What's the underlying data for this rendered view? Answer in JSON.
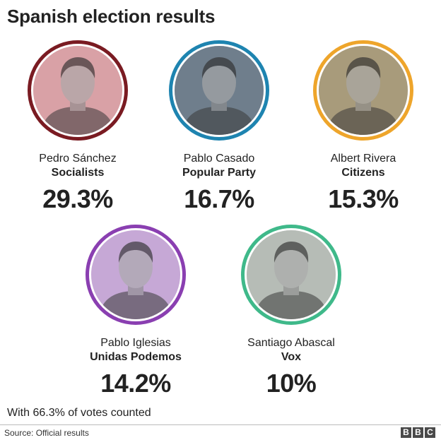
{
  "header": {
    "title": "Spanish election results"
  },
  "candidates": [
    {
      "name": "Pedro Sánchez",
      "party": "Socialists",
      "percent_label": "29.3%",
      "ring_color": "#7a1b22",
      "tint": "#d9a1a6"
    },
    {
      "name": "Pablo Casado",
      "party": "Popular Party",
      "percent_label": "16.7%",
      "ring_color": "#1e84b0",
      "tint": "#6f7f8c"
    },
    {
      "name": "Albert Rivera",
      "party": "Citizens",
      "percent_label": "15.3%",
      "ring_color": "#eea52b",
      "tint": "#a89b7c"
    },
    {
      "name": "Pablo Iglesias",
      "party": "Unidas Podemos",
      "percent_label": "14.2%",
      "ring_color": "#8a3fb1",
      "tint": "#c6a8d6"
    },
    {
      "name": "Santiago Abascal",
      "party": "Vox",
      "percent_label": "10%",
      "ring_color": "#3fb98a",
      "tint": "#b6bcb6"
    }
  ],
  "chart_data": {
    "type": "table",
    "title": "Spanish election results",
    "categories": [
      "Socialists",
      "Popular Party",
      "Citizens",
      "Unidas Podemos",
      "Vox"
    ],
    "candidates": [
      "Pedro Sánchez",
      "Pablo Casado",
      "Albert Rivera",
      "Pablo Iglesias",
      "Santiago Abascal"
    ],
    "values": [
      29.3,
      16.7,
      15.3,
      14.2,
      10
    ],
    "unit": "%"
  },
  "footer": {
    "note": "With 66.3% of votes counted",
    "source": "Source: Official results",
    "logo_letters": [
      "B",
      "B",
      "C"
    ]
  }
}
